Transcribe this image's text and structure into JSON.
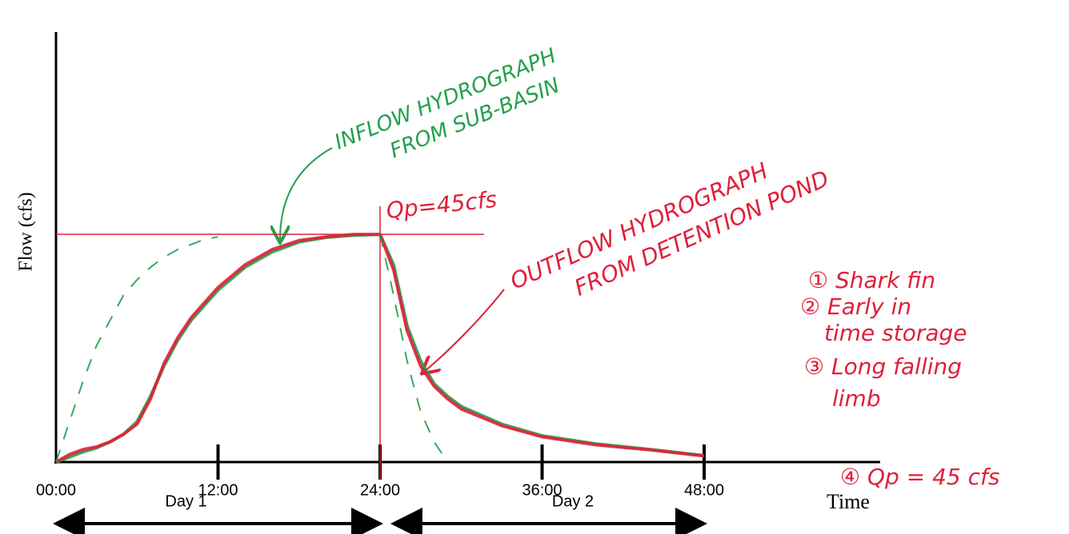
{
  "chart_data": {
    "type": "line",
    "y_label": "Flow (cfs)",
    "x_label": "Time",
    "x": [
      0,
      1,
      2,
      3,
      4,
      5,
      6,
      7,
      8,
      9,
      10,
      11,
      12,
      14,
      16,
      18,
      20,
      22,
      24,
      25,
      26,
      27,
      28,
      29,
      30,
      33,
      36,
      40,
      44,
      48
    ],
    "xlim": [
      0,
      48
    ],
    "xticks": [
      {
        "value": 0,
        "label": "00:00"
      },
      {
        "value": 12,
        "label": "12:00"
      },
      {
        "value": 24,
        "label": "24:00"
      },
      {
        "value": 36,
        "label": "36:00"
      },
      {
        "value": 48,
        "label": "48:00"
      }
    ],
    "ylim": [
      0,
      85
    ],
    "series": [
      {
        "color": "#23a04a",
        "values": [
          0,
          1,
          2,
          2.8,
          4,
          5.5,
          8,
          13,
          19,
          24,
          28,
          31,
          34,
          38.5,
          41.5,
          43.5,
          44.4,
          44.8,
          45,
          39,
          27,
          20,
          15.5,
          13,
          11,
          7.5,
          5.2,
          3.6,
          2.5,
          1.3
        ]
      },
      {
        "color": "#e0203a",
        "values": [
          0,
          1.5,
          2.5,
          3,
          4,
          5.5,
          7.5,
          12.5,
          19.5,
          24.5,
          28.5,
          31.5,
          34.5,
          39,
          42,
          43.8,
          44.5,
          45,
          45,
          38,
          26,
          19,
          15,
          12.5,
          10.5,
          7.2,
          5,
          3.4,
          2.4,
          1.2
        ]
      },
      {
        "color": "#23a04a",
        "dashed": true,
        "values": [
          0,
          8,
          16,
          23,
          28,
          33,
          36,
          38.5,
          40.5,
          42,
          43,
          44,
          44.5,
          null,
          null,
          null,
          null,
          null,
          45,
          33,
          20,
          10,
          4,
          0,
          null,
          null,
          null,
          null,
          null,
          null
        ]
      }
    ],
    "peak": {
      "label": "Qp=45cfs",
      "value": 45,
      "time": 24
    },
    "periods": [
      {
        "label": "Day 1",
        "from": 0,
        "to": 24
      },
      {
        "label": "Day 2",
        "from": 25,
        "to": 48
      }
    ],
    "inflow_note": [
      "INFLOW HYDROGRAPH",
      "FROM SUB-BASIN"
    ],
    "outflow_note": [
      "OUTFLOW HYDROGRAPH",
      "FROM    DETENTION  POND"
    ],
    "notes": [
      "① Shark fin",
      "② Early in",
      "time storage",
      "③ Long falling",
      "limb",
      "④ Qp = 45 cfs"
    ]
  }
}
